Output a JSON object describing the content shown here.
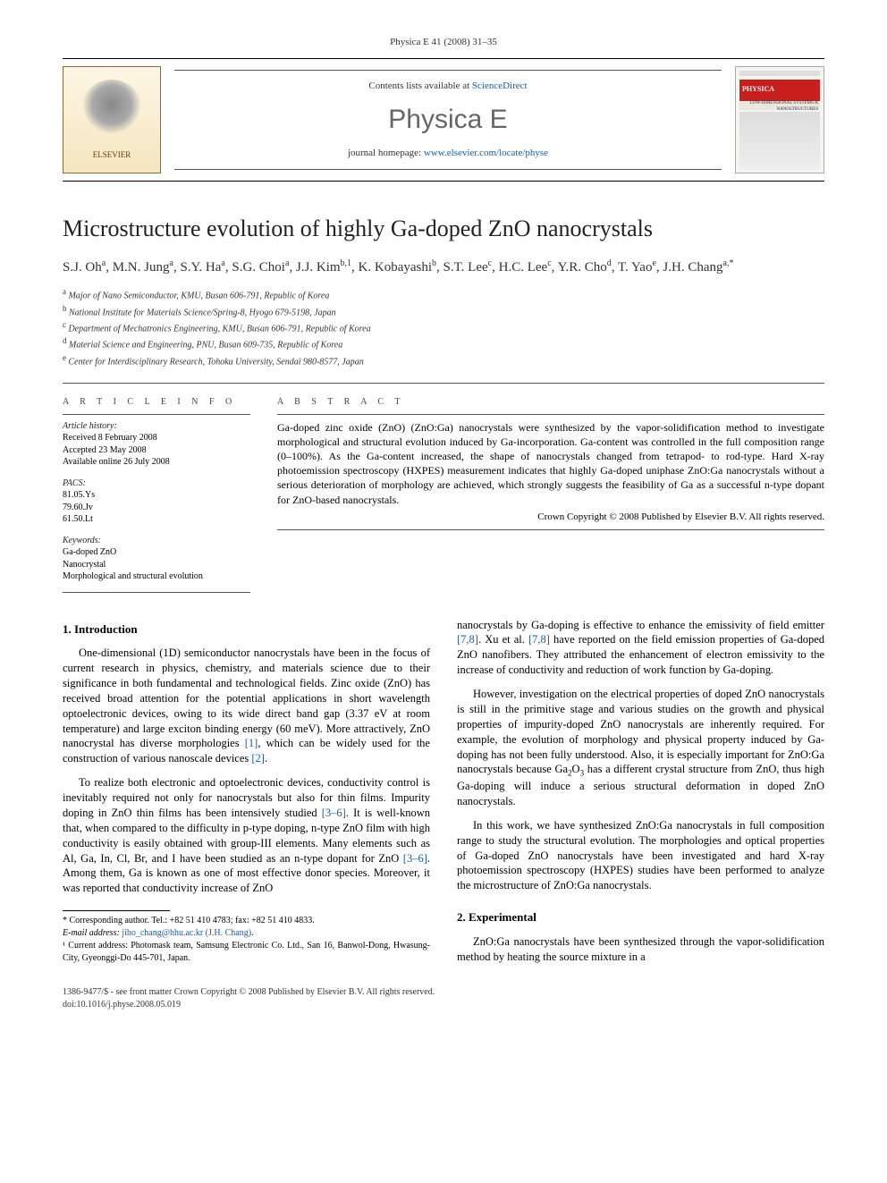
{
  "header": {
    "citation": "Physica E 41 (2008) 31–35",
    "contents_prefix": "Contents lists available at ",
    "contents_link": "ScienceDirect",
    "journal_name": "Physica E",
    "homepage_prefix": "journal homepage: ",
    "homepage_url": "www.elsevier.com/locate/physe",
    "publisher": "ELSEVIER",
    "cover_label": "PHYSICA",
    "cover_sub": "LOW-DIMENSIONAL SYSTEMS & NANOSTRUCTURES"
  },
  "title": "Microstructure evolution of highly Ga-doped ZnO nanocrystals",
  "authors_html": "S.J. Oh<sup>a</sup>, M.N. Jung<sup>a</sup>, S.Y. Ha<sup>a</sup>, S.G. Choi<sup>a</sup>, J.J. Kim<sup>b,1</sup>, K. Kobayashi<sup>b</sup>, S.T. Lee<sup>c</sup>, H.C. Lee<sup>c</sup>, Y.R. Cho<sup>d</sup>, T. Yao<sup>e</sup>, J.H. Chang<sup>a,*</sup>",
  "affiliations": [
    {
      "sup": "a",
      "text": "Major of Nano Semiconductor, KMU, Busan 606-791, Republic of Korea"
    },
    {
      "sup": "b",
      "text": "National Institute for Materials Science/Spring-8, Hyogo 679-5198, Japan"
    },
    {
      "sup": "c",
      "text": "Department of Mechatronics Engineering, KMU, Busan 606-791, Republic of Korea"
    },
    {
      "sup": "d",
      "text": "Material Science and Engineering, PNU, Busan 609-735, Republic of Korea"
    },
    {
      "sup": "e",
      "text": "Center for Interdisciplinary Research, Tohoku University, Sendai 980-8577, Japan"
    }
  ],
  "info": {
    "heading": "A R T I C L E   I N F O",
    "history_hdr": "Article history:",
    "received": "Received 8 February 2008",
    "accepted": "Accepted 23 May 2008",
    "online": "Available online 26 July 2008",
    "pacs_hdr": "PACS:",
    "pacs": [
      "81.05.Ys",
      "79.60.Jv",
      "61.50.Lt"
    ],
    "keywords_hdr": "Keywords:",
    "keywords": [
      "Ga-doped ZnO",
      "Nanocrystal",
      "Morphological and structural evolution"
    ]
  },
  "abstract": {
    "heading": "A B S T R A C T",
    "text": "Ga-doped zinc oxide (ZnO) (ZnO:Ga) nanocrystals were synthesized by the vapor-solidification method to investigate morphological and structural evolution induced by Ga-incorporation. Ga-content was controlled in the full composition range (0–100%). As the Ga-content increased, the shape of nanocrystals changed from tetrapod- to rod-type. Hard X-ray photoemission spectroscopy (HXPES) measurement indicates that highly Ga-doped uniphase ZnO:Ga nanocrystals without a serious deterioration of morphology are achieved, which strongly suggests the feasibility of Ga as a successful n-type dopant for ZnO-based nanocrystals.",
    "copyright": "Crown Copyright © 2008 Published by Elsevier B.V. All rights reserved."
  },
  "sections": {
    "intro_hdr": "1.  Introduction",
    "intro_p1": "One-dimensional (1D) semiconductor nanocrystals have been in the focus of current research in physics, chemistry, and materials science due to their significance in both fundamental and technological fields. Zinc oxide (ZnO) has received broad attention for the potential applications in short wavelength optoelectronic devices, owing to its wide direct band gap (3.37 eV at room temperature) and large exciton binding energy (60 meV). More attractively, ZnO nanocrystal has diverse morphologies [1], which can be widely used for the construction of various nanoscale devices [2].",
    "intro_p2": "To realize both electronic and optoelectronic devices, conductivity control is inevitably required not only for nanocrystals but also for thin films. Impurity doping in ZnO thin films has been intensively studied [3–6]. It is well-known that, when compared to the difficulty in p-type doping, n-type ZnO film with high conductivity is easily obtained with group-III elements. Many elements such as Al, Ga, In, Cl, Br, and I have been studied as an n-type dopant for ZnO [3–6]. Among them, Ga is known as one of most effective donor species. Moreover, it was reported that conductivity increase of ZnO",
    "intro_p3": "nanocrystals by Ga-doping is effective to enhance the emissivity of field emitter [7,8]. Xu et al. [7,8] have reported on the field emission properties of Ga-doped ZnO nanofibers. They attributed the enhancement of electron emissivity to the increase of conductivity and reduction of work function by Ga-doping.",
    "intro_p4": "However, investigation on the electrical properties of doped ZnO nanocrystals is still in the primitive stage and various studies on the growth and physical properties of impurity-doped ZnO nanocrystals are inherently required. For example, the evolution of morphology and physical property induced by Ga-doping has not been fully understood. Also, it is especially important for ZnO:Ga nanocrystals because Ga₂O₃ has a different crystal structure from ZnO, thus high Ga-doping will induce a serious structural deformation in doped ZnO nanocrystals.",
    "intro_p5": "In this work, we have synthesized ZnO:Ga nanocrystals in full composition range to study the structural evolution. The morphologies and optical properties of Ga-doped ZnO nanocrystals have been investigated and hard X-ray photoemission spectroscopy (HXPES) studies have been performed to analyze the microstructure of ZnO:Ga nanocrystals.",
    "exp_hdr": "2.  Experimental",
    "exp_p1": "ZnO:Ga nanocrystals have been synthesized through the vapor-solidification method by heating the source mixture in a"
  },
  "footnotes": {
    "corr": "* Corresponding author. Tel.: +82 51 410 4783; fax: +82 51 410 4833.",
    "email_label": "E-mail address: ",
    "email": "jiho_chang@hhu.ac.kr (J.H. Chang)",
    "note1": "¹ Current address: Photomask team, Samsung Electronic Co. Ltd., San 16, Banwol-Dong, Hwasung-City, Gyeonggi-Do 445-701, Japan."
  },
  "bottom": {
    "issn": "1386-9477/$ - see front matter Crown Copyright © 2008 Published by Elsevier B.V. All rights reserved.",
    "doi": "doi:10.1016/j.physe.2008.05.019"
  },
  "colors": {
    "link": "#1a5da8",
    "text": "#000000",
    "grey": "#666666",
    "elsevier_orange": "#e67817"
  }
}
